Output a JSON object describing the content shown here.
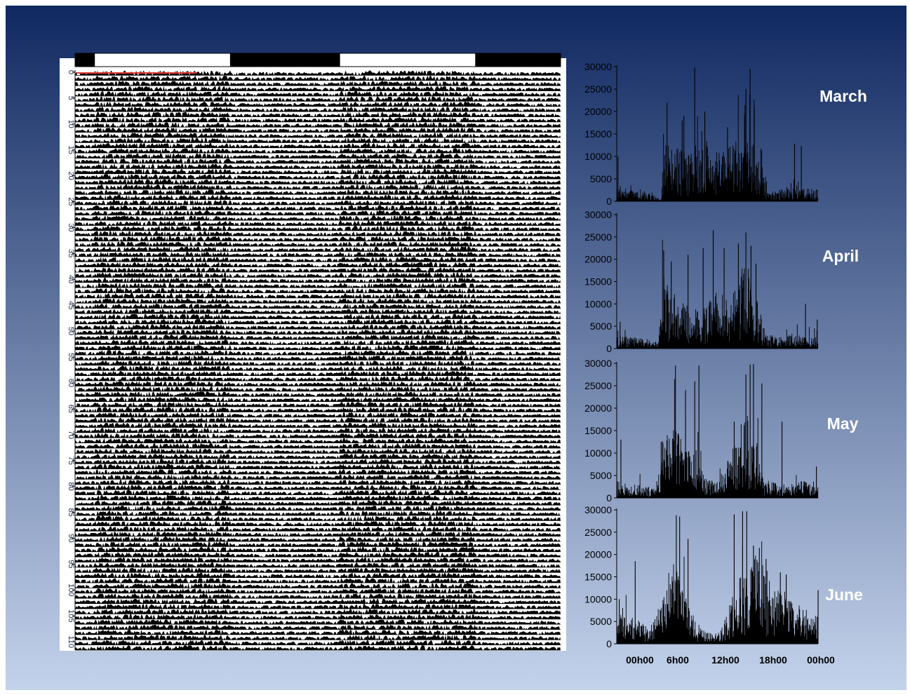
{
  "colors": {
    "background_top": "#0f2860",
    "background_bottom": "#c4d3ec",
    "bars": "#000000",
    "actogram_marker": "#e53935",
    "month_label": "#ffffff"
  },
  "actogram": {
    "type": "actogram",
    "day_ticks": [
      "0",
      "5",
      "10",
      "15",
      "20",
      "25",
      "30",
      "35",
      "40",
      "45",
      "50",
      "55",
      "60",
      "65",
      "70",
      "75",
      "80",
      "85",
      "90",
      "95",
      "100",
      "105",
      "110"
    ],
    "days": 112,
    "light_dark_bar": [
      {
        "state": "dark",
        "from": 0.0,
        "to": 0.04
      },
      {
        "state": "light",
        "from": 0.04,
        "to": 0.32
      },
      {
        "state": "dark",
        "from": 0.32,
        "to": 0.545
      },
      {
        "state": "light",
        "from": 0.545,
        "to": 0.825
      },
      {
        "state": "dark",
        "from": 0.825,
        "to": 1.0
      }
    ]
  },
  "chart_data": [
    {
      "type": "bar",
      "title": "March",
      "ylim": [
        0,
        30000
      ],
      "yticks": [
        "0",
        "5000",
        "10000",
        "15000",
        "20000",
        "25000",
        "30000"
      ],
      "profile": [
        [
          0,
          2500
        ],
        [
          2,
          1500
        ],
        [
          4,
          1200
        ],
        [
          5.3,
          300
        ],
        [
          5.5,
          9000
        ],
        [
          7,
          8500
        ],
        [
          8.5,
          7500
        ],
        [
          9.5,
          9000
        ],
        [
          11,
          8000
        ],
        [
          12.5,
          7000
        ],
        [
          14,
          9500
        ],
        [
          15.5,
          10000
        ],
        [
          16.5,
          8500
        ],
        [
          17.5,
          7500
        ],
        [
          18,
          1200
        ],
        [
          19.5,
          1800
        ],
        [
          22,
          2200
        ],
        [
          24,
          1800
        ]
      ],
      "spikes": [
        [
          0.15,
          10000
        ],
        [
          6,
          22000
        ],
        [
          7.8,
          18000
        ],
        [
          8,
          19000
        ],
        [
          9.3,
          29800
        ],
        [
          10.5,
          20000
        ],
        [
          13.2,
          16500
        ],
        [
          15.4,
          25000
        ],
        [
          15.9,
          29500
        ],
        [
          16.4,
          21000
        ],
        [
          21.2,
          12800
        ],
        [
          22,
          12300
        ]
      ]
    },
    {
      "type": "bar",
      "title": "April",
      "ylim": [
        0,
        30000
      ],
      "yticks": [
        "0",
        "5000",
        "10000",
        "15000",
        "20000",
        "25000",
        "30000"
      ],
      "profile": [
        [
          0,
          2000
        ],
        [
          2,
          1800
        ],
        [
          4,
          1300
        ],
        [
          5,
          1200
        ],
        [
          5.5,
          11000
        ],
        [
          7,
          8000
        ],
        [
          8.5,
          6500
        ],
        [
          10,
          5500
        ],
        [
          11.5,
          8500
        ],
        [
          13,
          8000
        ],
        [
          14.5,
          9500
        ],
        [
          15.5,
          15000
        ],
        [
          16.5,
          9000
        ],
        [
          17.7,
          2500
        ],
        [
          19,
          1800
        ],
        [
          22,
          2200
        ],
        [
          24,
          2000
        ]
      ],
      "spikes": [
        [
          0.4,
          6000
        ],
        [
          5.6,
          22000
        ],
        [
          6.5,
          19500
        ],
        [
          8.5,
          21000
        ],
        [
          10.3,
          22500
        ],
        [
          11.5,
          26500
        ],
        [
          12.8,
          22500
        ],
        [
          14.5,
          23500
        ],
        [
          15.4,
          26000
        ],
        [
          16,
          23000
        ],
        [
          16.6,
          19000
        ],
        [
          22.5,
          10000
        ],
        [
          23.9,
          6500
        ]
      ]
    },
    {
      "type": "bar",
      "title": "May",
      "ylim": [
        0,
        30000
      ],
      "yticks": [
        "0",
        "5000",
        "10000",
        "15000",
        "20000",
        "25000",
        "30000"
      ],
      "profile": [
        [
          0,
          2500
        ],
        [
          1.5,
          2200
        ],
        [
          3,
          2000
        ],
        [
          4.8,
          1500
        ],
        [
          5.5,
          9000
        ],
        [
          6.8,
          11000
        ],
        [
          8,
          8000
        ],
        [
          9.5,
          6000
        ],
        [
          10.5,
          3000
        ],
        [
          12,
          2500
        ],
        [
          13,
          5000
        ],
        [
          14.5,
          10000
        ],
        [
          15.5,
          13000
        ],
        [
          16.5,
          10000
        ],
        [
          17.5,
          2800
        ],
        [
          19.5,
          2000
        ],
        [
          22,
          2500
        ],
        [
          24,
          2500
        ]
      ],
      "spikes": [
        [
          0.5,
          13000
        ],
        [
          5.3,
          12500
        ],
        [
          7,
          29500
        ],
        [
          8.2,
          24000
        ],
        [
          9.3,
          26000
        ],
        [
          9.8,
          29500
        ],
        [
          14,
          17000
        ],
        [
          15.4,
          27500
        ],
        [
          15.9,
          29700
        ],
        [
          16.3,
          29800
        ],
        [
          17.3,
          25500
        ],
        [
          19.7,
          17000
        ],
        [
          23.8,
          7000
        ]
      ]
    },
    {
      "type": "bar",
      "title": "June",
      "ylim": [
        0,
        30000
      ],
      "yticks": [
        "0",
        "5000",
        "10000",
        "15000",
        "20000",
        "25000",
        "30000"
      ],
      "profile": [
        [
          0,
          4500
        ],
        [
          1.5,
          4200
        ],
        [
          3,
          3500
        ],
        [
          4,
          1800
        ],
        [
          5,
          6000
        ],
        [
          6.5,
          13000
        ],
        [
          7.5,
          10000
        ],
        [
          9,
          4500
        ],
        [
          10.5,
          1800
        ],
        [
          12,
          1500
        ],
        [
          13.5,
          6000
        ],
        [
          15,
          11000
        ],
        [
          16.5,
          14000
        ],
        [
          18,
          11000
        ],
        [
          19.5,
          8500
        ],
        [
          21.5,
          6000
        ],
        [
          23,
          5000
        ],
        [
          24,
          4000
        ]
      ],
      "spikes": [
        [
          0.3,
          10000
        ],
        [
          2.2,
          18500
        ],
        [
          7.1,
          28800
        ],
        [
          7.5,
          28500
        ],
        [
          8.5,
          23500
        ],
        [
          14,
          29000
        ],
        [
          15,
          29700
        ],
        [
          15.5,
          29700
        ],
        [
          16.3,
          22000
        ],
        [
          17,
          21500
        ],
        [
          17.8,
          19000
        ],
        [
          19.5,
          16000
        ],
        [
          20.2,
          15500
        ],
        [
          24,
          12000
        ]
      ]
    }
  ],
  "shared_x_axis": {
    "tick_labels": [
      "00h00",
      "6h00",
      "12h00",
      "18h00",
      "00h00"
    ],
    "tick_hours": [
      0,
      6,
      12,
      18,
      24
    ],
    "xlim": [
      0,
      24
    ]
  }
}
